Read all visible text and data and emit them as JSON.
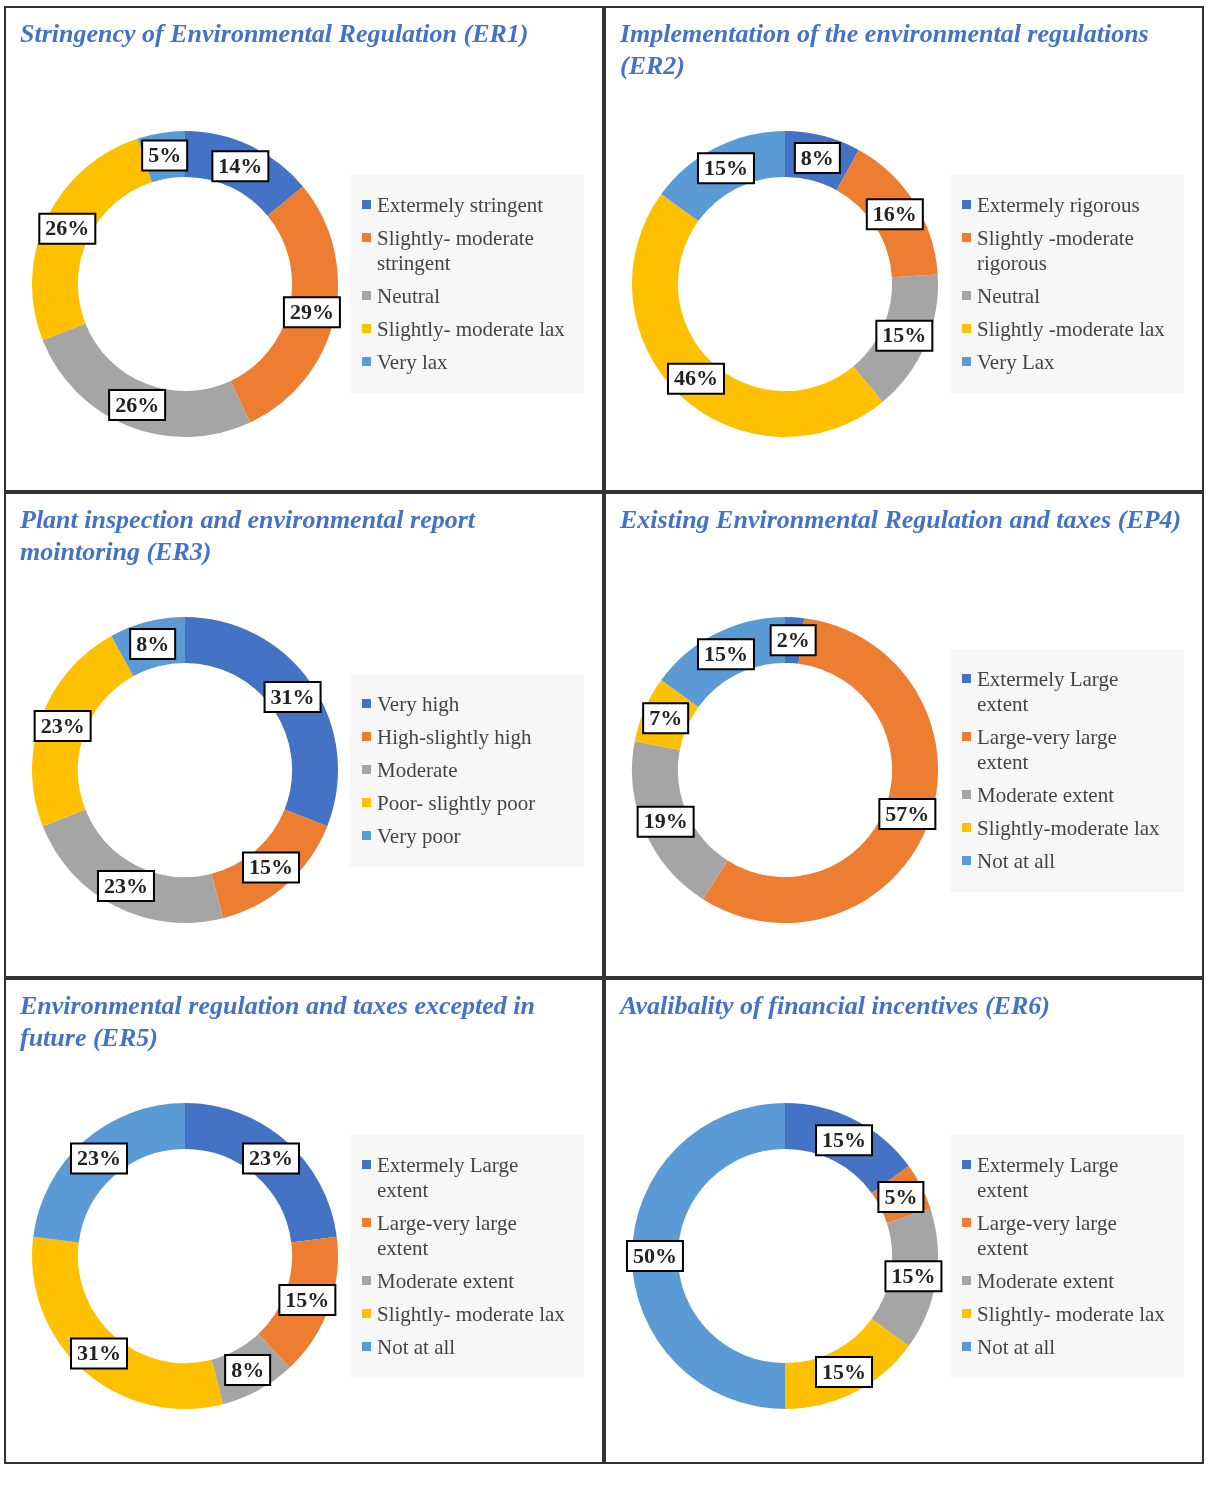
{
  "chart_data": [
    {
      "type": "donut",
      "title": "Stringency of Environmental Regulation (ER1)",
      "categories": [
        "Extermely stringent",
        "Slightly- moderate stringent",
        "Neutral",
        "Slightly- moderate lax",
        "Very lax"
      ],
      "values": [
        14,
        29,
        26,
        26,
        5
      ],
      "value_labels": [
        "14%",
        "29%",
        "26%",
        "26%",
        "5%"
      ],
      "colors": [
        "#4472c4",
        "#ed7d31",
        "#a5a5a5",
        "#ffc000",
        "#5b9bd5"
      ],
      "legend": "right"
    },
    {
      "type": "donut",
      "title": "Implementation of the environmental regulations (ER2)",
      "categories": [
        "Extermely rigorous",
        "Slightly -moderate rigorous",
        "Neutral",
        "Slightly -moderate lax",
        "Very Lax"
      ],
      "values": [
        8,
        16,
        15,
        46,
        15
      ],
      "value_labels": [
        "8%",
        "16%",
        "15%",
        "46%",
        "15%"
      ],
      "colors": [
        "#4472c4",
        "#ed7d31",
        "#a5a5a5",
        "#ffc000",
        "#5b9bd5"
      ],
      "legend": "right"
    },
    {
      "type": "donut",
      "title": "Plant inspection and environmental report mointoring (ER3)",
      "categories": [
        "Very high",
        "High-slightly high",
        "Moderate",
        "Poor- slightly poor",
        "Very poor"
      ],
      "values": [
        31,
        15,
        23,
        23,
        8
      ],
      "value_labels": [
        "31%",
        "15%",
        "23%",
        "23%",
        "8%"
      ],
      "colors": [
        "#4472c4",
        "#ed7d31",
        "#a5a5a5",
        "#ffc000",
        "#5b9bd5"
      ],
      "legend": "right"
    },
    {
      "type": "donut",
      "title": "Existing Environmental Regulation and taxes (EP4)",
      "categories": [
        "Extermely Large extent",
        "Large-very large extent",
        "Moderate extent",
        "Slightly-moderate lax",
        "Not at all"
      ],
      "values": [
        2,
        57,
        19,
        7,
        15
      ],
      "value_labels": [
        "2%",
        "57%",
        "19%",
        "7%",
        "15%"
      ],
      "colors": [
        "#4472c4",
        "#ed7d31",
        "#a5a5a5",
        "#ffc000",
        "#5b9bd5"
      ],
      "legend": "right"
    },
    {
      "type": "donut",
      "title": "Environmental regulation and taxes excepted in future (ER5)",
      "categories": [
        "Extermely Large extent",
        "Large-very large extent",
        "Moderate extent",
        "Slightly- moderate lax",
        "Not at all"
      ],
      "values": [
        23,
        15,
        8,
        31,
        23
      ],
      "value_labels": [
        "23%",
        "15%",
        "8%",
        "31%",
        "23%"
      ],
      "colors": [
        "#4472c4",
        "#ed7d31",
        "#a5a5a5",
        "#ffc000",
        "#5b9bd5"
      ],
      "legend": "right"
    },
    {
      "type": "donut",
      "title": "Avalibality of financial incentives (ER6)",
      "categories": [
        "Extermely Large extent",
        "Large-very large extent",
        "Moderate extent",
        "Slightly- moderate lax",
        "Not at all"
      ],
      "values": [
        15,
        5,
        15,
        15,
        50
      ],
      "value_labels": [
        "15%",
        "5%",
        "15%",
        "15%",
        "50%"
      ],
      "colors": [
        "#4472c4",
        "#ed7d31",
        "#a5a5a5",
        "#ffc000",
        "#5b9bd5"
      ],
      "legend": "right"
    }
  ]
}
